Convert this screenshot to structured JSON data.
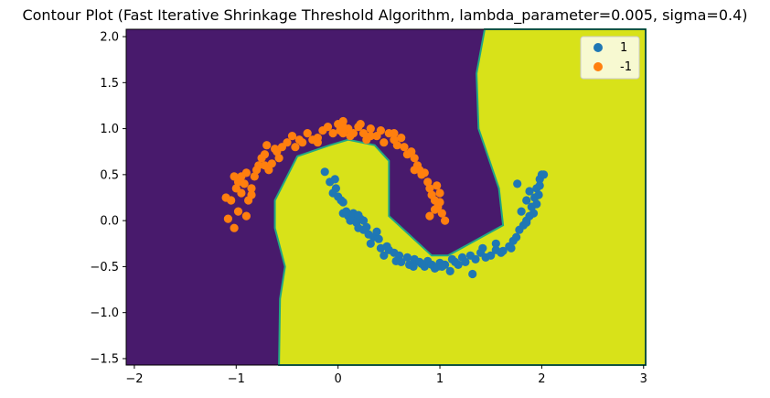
{
  "chart_data": {
    "type": "scatter",
    "title": "Contour Plot (Fast Iterative Shrinkage Threshold Algorithm, lambda_parameter=0.005, sigma=0.4)",
    "xlabel": "",
    "ylabel": "",
    "xlim": [
      -2.08,
      3.02
    ],
    "ylim": [
      -1.57,
      2.08
    ],
    "xticks": [
      -2,
      -1,
      0,
      1,
      2,
      3
    ],
    "yticks": [
      -1.5,
      -1.0,
      -0.5,
      0.0,
      0.5,
      1.0,
      1.5,
      2.0
    ],
    "xtick_labels": [
      "−2",
      "−1",
      "0",
      "1",
      "2",
      "3"
    ],
    "ytick_labels": [
      "−1.5",
      "−1.0",
      "−0.5",
      "0.0",
      "0.5",
      "1.0",
      "1.5",
      "2.0"
    ],
    "grid": false,
    "legend_position": "top-right",
    "background_regions": {
      "negative_class_color": "#481a6c",
      "positive_class_color": "#d8e219",
      "boundary_color": "#22a884",
      "description_classes": [
        "-1",
        "1"
      ]
    },
    "series": [
      {
        "name": "1",
        "color": "#1f77b4",
        "points": [
          [
            -0.13,
            0.53
          ],
          [
            -0.08,
            0.42
          ],
          [
            -0.02,
            0.35
          ],
          [
            -0.05,
            0.3
          ],
          [
            0.0,
            0.26
          ],
          [
            0.03,
            0.22
          ],
          [
            -0.03,
            0.45
          ],
          [
            0.05,
            0.2
          ],
          [
            0.05,
            0.08
          ],
          [
            0.1,
            0.05
          ],
          [
            0.12,
            0.0
          ],
          [
            0.15,
            0.03
          ],
          [
            0.18,
            -0.02
          ],
          [
            0.2,
            -0.08
          ],
          [
            0.22,
            0.02
          ],
          [
            0.25,
            -0.1
          ],
          [
            0.3,
            -0.15
          ],
          [
            0.35,
            -0.18
          ],
          [
            0.32,
            -0.25
          ],
          [
            0.4,
            -0.2
          ],
          [
            0.42,
            -0.3
          ],
          [
            0.48,
            -0.28
          ],
          [
            0.5,
            -0.32
          ],
          [
            0.45,
            -0.38
          ],
          [
            0.55,
            -0.35
          ],
          [
            0.6,
            -0.38
          ],
          [
            0.62,
            -0.45
          ],
          [
            0.68,
            -0.4
          ],
          [
            0.7,
            -0.48
          ],
          [
            0.75,
            -0.42
          ],
          [
            0.8,
            -0.45
          ],
          [
            0.85,
            -0.5
          ],
          [
            0.88,
            -0.44
          ],
          [
            0.92,
            -0.48
          ],
          [
            0.95,
            -0.52
          ],
          [
            1.0,
            -0.46
          ],
          [
            1.05,
            -0.48
          ],
          [
            1.1,
            -0.55
          ],
          [
            1.12,
            -0.42
          ],
          [
            1.18,
            -0.48
          ],
          [
            1.22,
            -0.4
          ],
          [
            1.25,
            -0.45
          ],
          [
            1.3,
            -0.38
          ],
          [
            1.32,
            -0.58
          ],
          [
            1.35,
            -0.42
          ],
          [
            1.4,
            -0.35
          ],
          [
            1.45,
            -0.4
          ],
          [
            1.5,
            -0.38
          ],
          [
            1.55,
            -0.32
          ],
          [
            1.62,
            -0.33
          ],
          [
            1.68,
            -0.28
          ],
          [
            1.72,
            -0.22
          ],
          [
            1.75,
            -0.18
          ],
          [
            1.78,
            -0.1
          ],
          [
            1.82,
            -0.05
          ],
          [
            1.85,
            0.0
          ],
          [
            1.88,
            0.05
          ],
          [
            1.9,
            0.15
          ],
          [
            1.93,
            0.25
          ],
          [
            1.95,
            0.35
          ],
          [
            1.98,
            0.45
          ],
          [
            2.0,
            0.5
          ],
          [
            2.02,
            0.5
          ],
          [
            1.85,
            0.22
          ],
          [
            1.92,
            0.08
          ],
          [
            1.8,
            0.1
          ],
          [
            1.6,
            -0.35
          ],
          [
            1.7,
            -0.3
          ],
          [
            0.25,
            0.0
          ],
          [
            0.08,
            0.1
          ],
          [
            0.38,
            -0.12
          ],
          [
            0.98,
            -0.5
          ],
          [
            0.57,
            -0.44
          ],
          [
            1.02,
            -0.5
          ],
          [
            1.15,
            -0.45
          ],
          [
            1.95,
            0.18
          ],
          [
            1.97,
            0.28
          ],
          [
            1.85,
            -0.02
          ],
          [
            1.76,
            0.4
          ],
          [
            1.55,
            -0.25
          ],
          [
            0.82,
            -0.47
          ],
          [
            0.74,
            -0.5
          ],
          [
            0.28,
            -0.07
          ],
          [
            0.15,
            0.08
          ],
          [
            0.2,
            0.06
          ],
          [
            1.42,
            -0.3
          ],
          [
            1.88,
            0.32
          ],
          [
            1.98,
            0.38
          ]
        ]
      },
      {
        "name": "-1",
        "color": "#ff7f0e",
        "points": [
          [
            -1.05,
            0.22
          ],
          [
            -1.0,
            0.35
          ],
          [
            -0.98,
            0.42
          ],
          [
            -1.02,
            0.48
          ],
          [
            -0.95,
            0.3
          ],
          [
            -0.92,
            0.4
          ],
          [
            -0.9,
            0.52
          ],
          [
            -0.88,
            0.22
          ],
          [
            -0.85,
            0.35
          ],
          [
            -0.82,
            0.48
          ],
          [
            -0.8,
            0.55
          ],
          [
            -0.78,
            0.6
          ],
          [
            -0.75,
            0.68
          ],
          [
            -0.72,
            0.72
          ],
          [
            -0.7,
            0.82
          ],
          [
            -0.68,
            0.55
          ],
          [
            -0.65,
            0.62
          ],
          [
            -0.62,
            0.78
          ],
          [
            -0.6,
            0.75
          ],
          [
            -0.55,
            0.8
          ],
          [
            -0.5,
            0.85
          ],
          [
            -0.45,
            0.92
          ],
          [
            -0.42,
            0.8
          ],
          [
            -0.38,
            0.88
          ],
          [
            -0.35,
            0.85
          ],
          [
            -0.3,
            0.95
          ],
          [
            -0.25,
            0.88
          ],
          [
            -0.2,
            0.9
          ],
          [
            -0.15,
            0.98
          ],
          [
            -0.1,
            1.02
          ],
          [
            -0.05,
            0.95
          ],
          [
            0.0,
            1.05
          ],
          [
            0.02,
            0.98
          ],
          [
            0.05,
            1.08
          ],
          [
            0.1,
            1.0
          ],
          [
            0.12,
            0.92
          ],
          [
            0.15,
            0.95
          ],
          [
            0.2,
            1.02
          ],
          [
            0.25,
            0.95
          ],
          [
            0.28,
            0.88
          ],
          [
            0.32,
            1.0
          ],
          [
            0.38,
            0.92
          ],
          [
            0.42,
            0.98
          ],
          [
            0.45,
            0.85
          ],
          [
            0.5,
            0.95
          ],
          [
            0.55,
            0.88
          ],
          [
            0.58,
            0.82
          ],
          [
            0.62,
            0.9
          ],
          [
            0.65,
            0.8
          ],
          [
            0.68,
            0.72
          ],
          [
            0.72,
            0.75
          ],
          [
            0.75,
            0.68
          ],
          [
            0.78,
            0.6
          ],
          [
            0.8,
            0.55
          ],
          [
            0.82,
            0.5
          ],
          [
            0.85,
            0.52
          ],
          [
            0.88,
            0.42
          ],
          [
            0.9,
            0.35
          ],
          [
            0.92,
            0.28
          ],
          [
            0.95,
            0.22
          ],
          [
            0.98,
            0.15
          ],
          [
            1.0,
            0.2
          ],
          [
            1.02,
            0.08
          ],
          [
            1.05,
            0.0
          ],
          [
            0.9,
            0.05
          ],
          [
            0.95,
            0.12
          ],
          [
            1.0,
            0.3
          ],
          [
            -1.08,
            0.02
          ],
          [
            -1.02,
            -0.08
          ],
          [
            -0.98,
            0.1
          ],
          [
            -0.9,
            0.05
          ],
          [
            -1.1,
            0.25
          ],
          [
            -0.95,
            0.48
          ],
          [
            -0.85,
            0.28
          ],
          [
            -0.58,
            0.68
          ],
          [
            -0.2,
            0.85
          ],
          [
            0.32,
            0.92
          ],
          [
            0.55,
            0.95
          ],
          [
            0.75,
            0.55
          ],
          [
            0.97,
            0.38
          ],
          [
            -0.72,
            0.6
          ],
          [
            0.05,
            1.02
          ],
          [
            0.22,
            1.05
          ],
          [
            0.05,
            0.95
          ]
        ]
      }
    ]
  }
}
